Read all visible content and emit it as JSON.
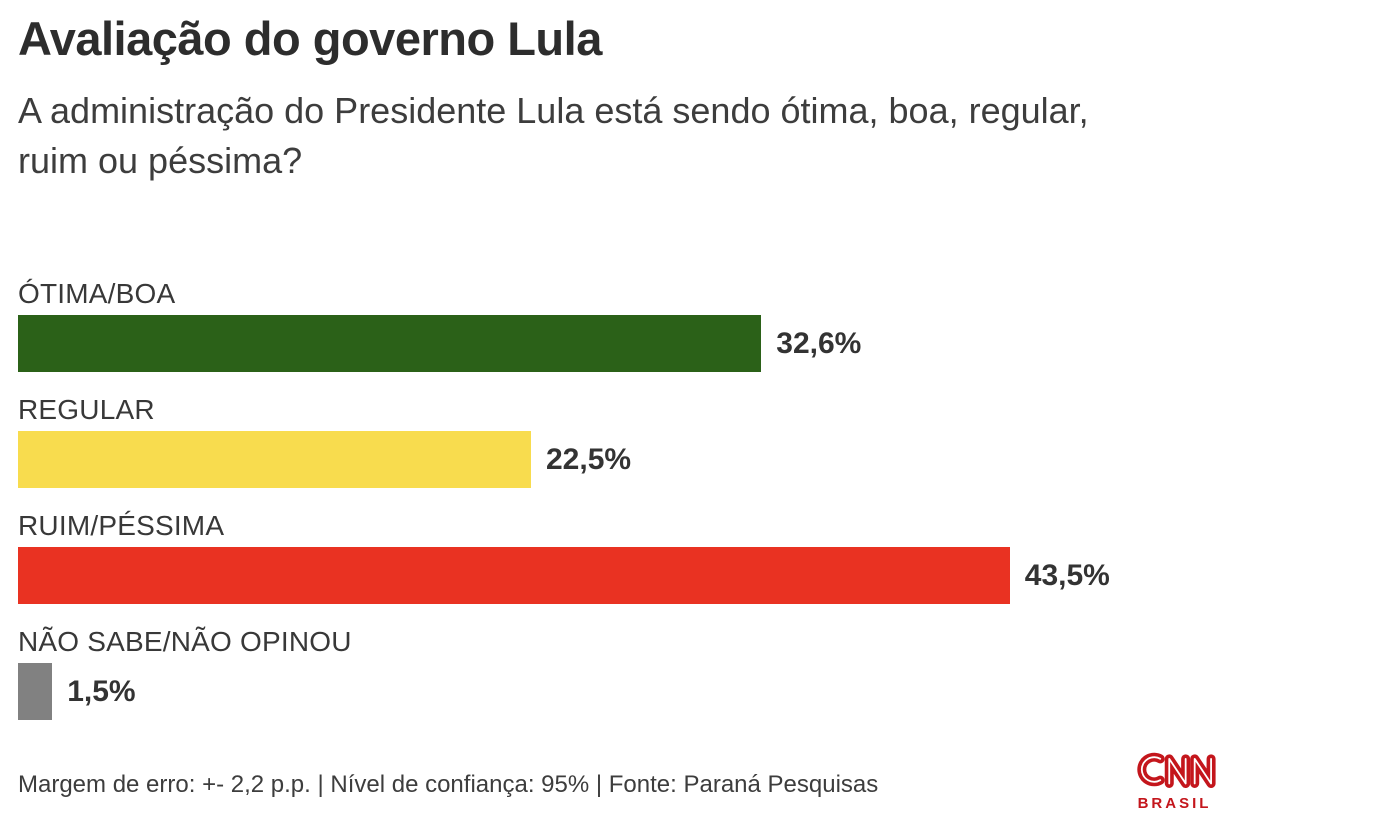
{
  "title": "Avaliação do governo Lula",
  "subtitle": "A administração do Presidente Lula está sendo ótima, boa, regular, ruim ou péssima?",
  "chart_data": {
    "type": "bar",
    "orientation": "horizontal",
    "title": "Avaliação do governo Lula",
    "categories": [
      "ÓTIMA/BOA",
      "REGULAR",
      "RUIM/PÉSSIMA",
      "NÃO SABE/NÃO OPINOU"
    ],
    "values": [
      32.6,
      22.5,
      43.5,
      1.5
    ],
    "values_display": [
      "32,6%",
      "22,5%",
      "43,5%",
      "1,5%"
    ],
    "bar_colors": [
      "#2b6118",
      "#f8dc4e",
      "#e93222",
      "#818181"
    ],
    "xlim": [
      0,
      100
    ],
    "grid": false,
    "legend": false,
    "value_label_position": "right-of-bar"
  },
  "footer": {
    "note": "Margem de erro: +- 2,2 p.p. | Nível de confiança: 95% | Fonte: Paraná Pesquisas"
  },
  "logo": {
    "brand": "CNN",
    "region": "BRASIL",
    "color": "#c4161c"
  }
}
